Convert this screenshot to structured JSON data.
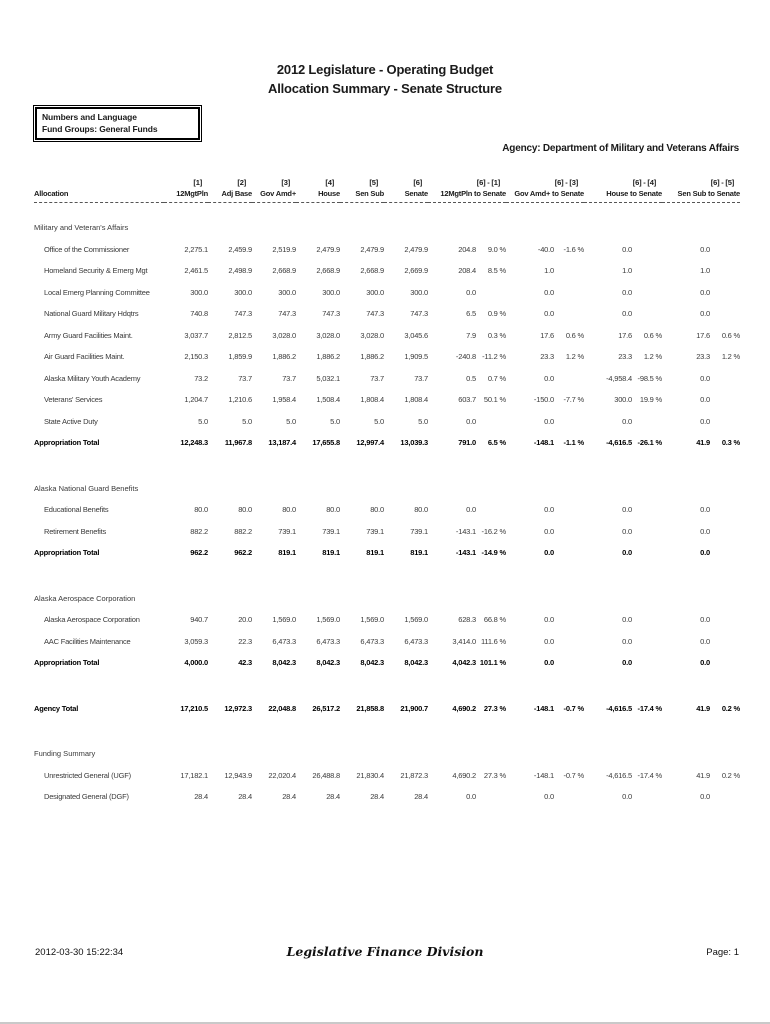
{
  "header": {
    "title": "2012 Legislature - Operating Budget",
    "subtitle": "Allocation Summary - Senate Structure",
    "filters": [
      "Numbers and Language",
      "Fund Groups: General Funds"
    ],
    "agency": "Agency: Department of Military and Veterans Affairs"
  },
  "table": {
    "allocation_header": "Allocation",
    "columns": [
      {
        "num": "[1]",
        "name": "12MgtPln"
      },
      {
        "num": "[2]",
        "name": "Adj Base"
      },
      {
        "num": "[3]",
        "name": "Gov Amd+"
      },
      {
        "num": "[4]",
        "name": "House"
      },
      {
        "num": "[5]",
        "name": "Sen Sub"
      },
      {
        "num": "[6]",
        "name": "Senate"
      }
    ],
    "diff_columns": [
      {
        "num": "[6] - [1]",
        "name": "12MgtPln to Senate"
      },
      {
        "num": "[6] - [3]",
        "name": "Gov Amd+ to Senate"
      },
      {
        "num": "[6] - [4]",
        "name": "House  to Senate"
      },
      {
        "num": "[6] - [5]",
        "name": "Sen Sub to Senate"
      }
    ],
    "sections": [
      {
        "name": "Military and Veteran's Affairs",
        "rows": [
          {
            "label": "Office of the Commissioner",
            "values": [
              "2,275.1",
              "2,459.9",
              "2,519.9",
              "2,479.9",
              "2,479.9",
              "2,479.9"
            ],
            "diffs": [
              [
                "204.8",
                "9.0 %"
              ],
              [
                "-40.0",
                "-1.6 %"
              ],
              [
                "0.0",
                ""
              ],
              [
                "0.0",
                ""
              ]
            ]
          },
          {
            "label": "Homeland Security & Emerg Mgt",
            "values": [
              "2,461.5",
              "2,498.9",
              "2,668.9",
              "2,668.9",
              "2,668.9",
              "2,669.9"
            ],
            "diffs": [
              [
                "208.4",
                "8.5 %"
              ],
              [
                "1.0",
                ""
              ],
              [
                "1.0",
                ""
              ],
              [
                "1.0",
                ""
              ]
            ]
          },
          {
            "label": "Local Emerg Planning Committee",
            "values": [
              "300.0",
              "300.0",
              "300.0",
              "300.0",
              "300.0",
              "300.0"
            ],
            "diffs": [
              [
                "0.0",
                ""
              ],
              [
                "0.0",
                ""
              ],
              [
                "0.0",
                ""
              ],
              [
                "0.0",
                ""
              ]
            ]
          },
          {
            "label": "National Guard Military Hdqtrs",
            "values": [
              "740.8",
              "747.3",
              "747.3",
              "747.3",
              "747.3",
              "747.3"
            ],
            "diffs": [
              [
                "6.5",
                "0.9 %"
              ],
              [
                "0.0",
                ""
              ],
              [
                "0.0",
                ""
              ],
              [
                "0.0",
                ""
              ]
            ]
          },
          {
            "label": "Army Guard Facilities Maint.",
            "values": [
              "3,037.7",
              "2,812.5",
              "3,028.0",
              "3,028.0",
              "3,028.0",
              "3,045.6"
            ],
            "diffs": [
              [
                "7.9",
                "0.3 %"
              ],
              [
                "17.6",
                "0.6 %"
              ],
              [
                "17.6",
                "0.6 %"
              ],
              [
                "17.6",
                "0.6 %"
              ]
            ]
          },
          {
            "label": "Air Guard Facilities Maint.",
            "values": [
              "2,150.3",
              "1,859.9",
              "1,886.2",
              "1,886.2",
              "1,886.2",
              "1,909.5"
            ],
            "diffs": [
              [
                "-240.8",
                "-11.2 %"
              ],
              [
                "23.3",
                "1.2 %"
              ],
              [
                "23.3",
                "1.2 %"
              ],
              [
                "23.3",
                "1.2 %"
              ]
            ]
          },
          {
            "label": "Alaska Military Youth Academy",
            "values": [
              "73.2",
              "73.7",
              "73.7",
              "5,032.1",
              "73.7",
              "73.7"
            ],
            "diffs": [
              [
                "0.5",
                "0.7 %"
              ],
              [
                "0.0",
                ""
              ],
              [
                "-4,958.4",
                "-98.5 %"
              ],
              [
                "0.0",
                ""
              ]
            ]
          },
          {
            "label": "Veterans' Services",
            "values": [
              "1,204.7",
              "1,210.6",
              "1,958.4",
              "1,508.4",
              "1,808.4",
              "1,808.4"
            ],
            "diffs": [
              [
                "603.7",
                "50.1 %"
              ],
              [
                "-150.0",
                "-7.7 %"
              ],
              [
                "300.0",
                "19.9 %"
              ],
              [
                "0.0",
                ""
              ]
            ]
          },
          {
            "label": "State Active Duty",
            "values": [
              "5.0",
              "5.0",
              "5.0",
              "5.0",
              "5.0",
              "5.0"
            ],
            "diffs": [
              [
                "0.0",
                ""
              ],
              [
                "0.0",
                ""
              ],
              [
                "0.0",
                ""
              ],
              [
                "0.0",
                ""
              ]
            ]
          }
        ],
        "total": {
          "label": "Appropriation Total",
          "values": [
            "12,248.3",
            "11,967.8",
            "13,187.4",
            "17,655.8",
            "12,997.4",
            "13,039.3"
          ],
          "diffs": [
            [
              "791.0",
              "6.5 %"
            ],
            [
              "-148.1",
              "-1.1 %"
            ],
            [
              "-4,616.5",
              "-26.1 %"
            ],
            [
              "41.9",
              "0.3 %"
            ]
          ]
        }
      },
      {
        "name": "Alaska National Guard Benefits",
        "rows": [
          {
            "label": "Educational Benefits",
            "values": [
              "80.0",
              "80.0",
              "80.0",
              "80.0",
              "80.0",
              "80.0"
            ],
            "diffs": [
              [
                "0.0",
                ""
              ],
              [
                "0.0",
                ""
              ],
              [
                "0.0",
                ""
              ],
              [
                "0.0",
                ""
              ]
            ]
          },
          {
            "label": "Retirement Benefits",
            "values": [
              "882.2",
              "882.2",
              "739.1",
              "739.1",
              "739.1",
              "739.1"
            ],
            "diffs": [
              [
                "-143.1",
                "-16.2 %"
              ],
              [
                "0.0",
                ""
              ],
              [
                "0.0",
                ""
              ],
              [
                "0.0",
                ""
              ]
            ]
          }
        ],
        "total": {
          "label": "Appropriation Total",
          "values": [
            "962.2",
            "962.2",
            "819.1",
            "819.1",
            "819.1",
            "819.1"
          ],
          "diffs": [
            [
              "-143.1",
              "-14.9 %"
            ],
            [
              "0.0",
              ""
            ],
            [
              "0.0",
              ""
            ],
            [
              "0.0",
              ""
            ]
          ]
        }
      },
      {
        "name": "Alaska Aerospace Corporation",
        "rows": [
          {
            "label": "Alaska Aerospace Corporation",
            "values": [
              "940.7",
              "20.0",
              "1,569.0",
              "1,569.0",
              "1,569.0",
              "1,569.0"
            ],
            "diffs": [
              [
                "628.3",
                "66.8 %"
              ],
              [
                "0.0",
                ""
              ],
              [
                "0.0",
                ""
              ],
              [
                "0.0",
                ""
              ]
            ]
          },
          {
            "label": "AAC Facilities Maintenance",
            "values": [
              "3,059.3",
              "22.3",
              "6,473.3",
              "6,473.3",
              "6,473.3",
              "6,473.3"
            ],
            "diffs": [
              [
                "3,414.0",
                "111.6 %"
              ],
              [
                "0.0",
                ""
              ],
              [
                "0.0",
                ""
              ],
              [
                "0.0",
                ""
              ]
            ]
          }
        ],
        "total": {
          "label": "Appropriation Total",
          "values": [
            "4,000.0",
            "42.3",
            "8,042.3",
            "8,042.3",
            "8,042.3",
            "8,042.3"
          ],
          "diffs": [
            [
              "4,042.3",
              "101.1 %"
            ],
            [
              "0.0",
              ""
            ],
            [
              "0.0",
              ""
            ],
            [
              "0.0",
              ""
            ]
          ]
        }
      }
    ],
    "agency_total": {
      "label": "Agency Total",
      "values": [
        "17,210.5",
        "12,972.3",
        "22,048.8",
        "26,517.2",
        "21,858.8",
        "21,900.7"
      ],
      "diffs": [
        [
          "4,690.2",
          "27.3 %"
        ],
        [
          "-148.1",
          "-0.7 %"
        ],
        [
          "-4,616.5",
          "-17.4 %"
        ],
        [
          "41.9",
          "0.2 %"
        ]
      ]
    },
    "funding_summary": {
      "name": "Funding Summary",
      "rows": [
        {
          "label": "Unrestricted General (UGF)",
          "values": [
            "17,182.1",
            "12,943.9",
            "22,020.4",
            "26,488.8",
            "21,830.4",
            "21,872.3"
          ],
          "diffs": [
            [
              "4,690.2",
              "27.3 %"
            ],
            [
              "-148.1",
              "-0.7 %"
            ],
            [
              "-4,616.5",
              "-17.4 %"
            ],
            [
              "41.9",
              "0.2 %"
            ]
          ]
        },
        {
          "label": "Designated General (DGF)",
          "values": [
            "28.4",
            "28.4",
            "28.4",
            "28.4",
            "28.4",
            "28.4"
          ],
          "diffs": [
            [
              "0.0",
              ""
            ],
            [
              "0.0",
              ""
            ],
            [
              "0.0",
              ""
            ],
            [
              "0.0",
              ""
            ]
          ]
        }
      ]
    }
  },
  "footer": {
    "timestamp": "2012-03-30 15:22:34",
    "division": "Legislative Finance Division",
    "page": "Page: 1"
  }
}
